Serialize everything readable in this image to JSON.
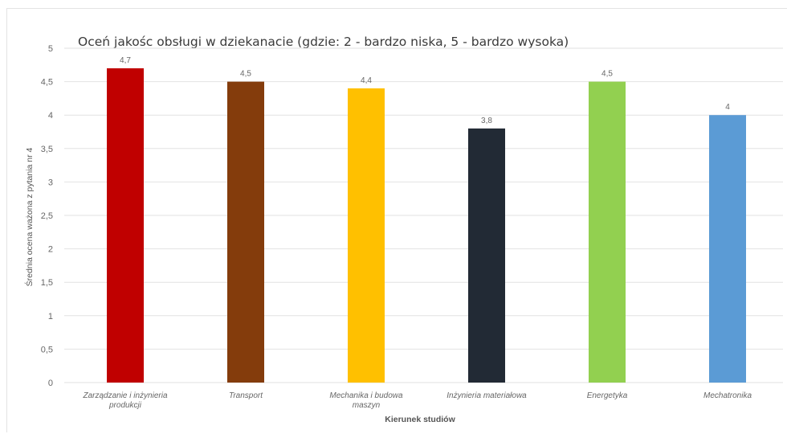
{
  "chart_data": {
    "type": "bar",
    "title": "Oceń jakośc obsługi w dziekanacie (gdzie: 2 - bardzo niska, 5 - bardzo wysoka)",
    "xlabel": "Kierunek studiów",
    "ylabel": "Średnia ocena ważona z pytania nr 4",
    "categories": [
      [
        "Zarządzanie i inżynieria",
        "produkcji"
      ],
      [
        "Transport"
      ],
      [
        "Mechanika i budowa",
        "maszyn"
      ],
      [
        "Inżynieria materiałowa"
      ],
      [
        "Energetyka"
      ],
      [
        "Mechatronika"
      ]
    ],
    "values": [
      4.7,
      4.5,
      4.4,
      3.8,
      4.5,
      4.0
    ],
    "value_labels": [
      "4,7",
      "4,5",
      "4,4",
      "3,8",
      "4,5",
      "4"
    ],
    "colors": [
      "#c00000",
      "#843c0c",
      "#ffc000",
      "#222a35",
      "#92d050",
      "#5b9bd5"
    ],
    "ylim": [
      0,
      5
    ],
    "yticks": [
      0,
      0.5,
      1,
      1.5,
      2,
      2.5,
      3,
      3.5,
      4,
      4.5,
      5
    ],
    "ytick_labels": [
      "0",
      "0,5",
      "1",
      "1,5",
      "2",
      "2,5",
      "3",
      "3,5",
      "4",
      "4,5",
      "5"
    ],
    "grid": true,
    "legend": "none"
  }
}
